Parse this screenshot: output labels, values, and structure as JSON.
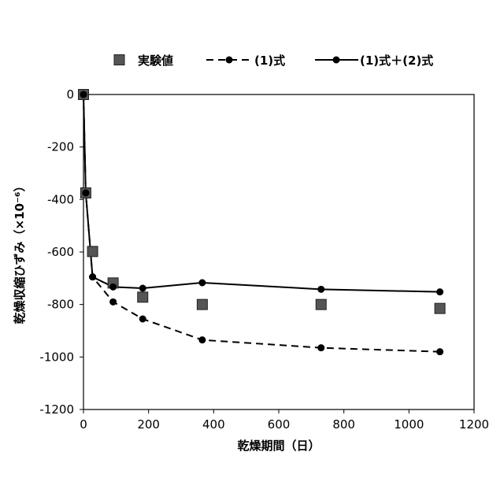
{
  "chart_data": {
    "type": "line",
    "xlabel": "乾燥期間（日）",
    "ylabel": "乾燥収縮ひずみ（×10⁻⁶）",
    "xlim": [
      0,
      1200
    ],
    "ylim": [
      -1200,
      0
    ],
    "xticks": [
      0,
      200,
      400,
      600,
      800,
      1000,
      1200
    ],
    "yticks": [
      0,
      -200,
      -400,
      -600,
      -800,
      -1000,
      -1200
    ],
    "grid": false,
    "legend_position": "top",
    "series": [
      {
        "name": "実験値",
        "style": "markers-square",
        "color": "#555555",
        "x": [
          0,
          7,
          28,
          91,
          182,
          365,
          730,
          1095
        ],
        "y": [
          0,
          -375,
          -598,
          -718,
          -772,
          -800,
          -800,
          -815
        ]
      },
      {
        "name": "(1)式",
        "style": "dashed-circle",
        "color": "#000000",
        "x": [
          0,
          7,
          28,
          91,
          182,
          365,
          730,
          1095
        ],
        "y": [
          0,
          -375,
          -695,
          -790,
          -855,
          -935,
          -965,
          -980
        ]
      },
      {
        "name": "(1)式＋(2)式",
        "style": "solid-circle",
        "color": "#000000",
        "x": [
          0,
          7,
          28,
          91,
          182,
          365,
          730,
          1095
        ],
        "y": [
          0,
          -375,
          -695,
          -733,
          -738,
          -717,
          -742,
          -752
        ]
      }
    ]
  }
}
